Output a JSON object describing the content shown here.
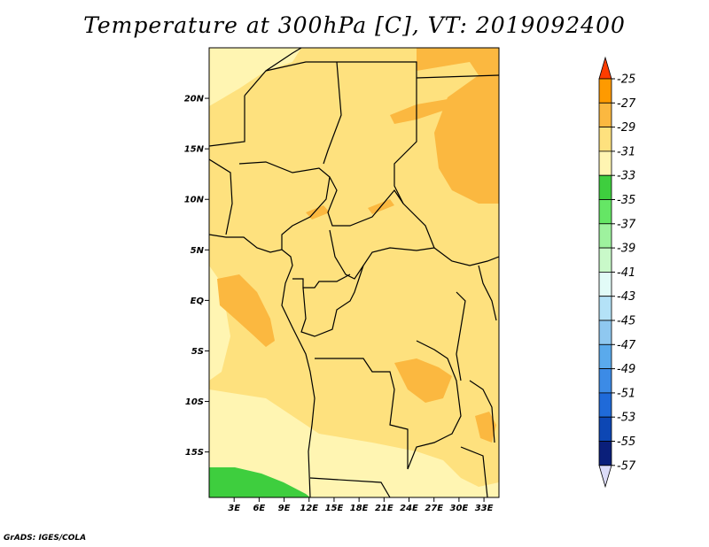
{
  "title": "Temperature at 300hPa [C], VT: 2019092400",
  "footer": "GrADS: IGES/COLA",
  "map": {
    "lon_range": [
      0,
      34.8
    ],
    "lat_range": [
      -19.5,
      25
    ],
    "lon_ticks": [
      {
        "value": 3,
        "label": "3E"
      },
      {
        "value": 6,
        "label": "6E"
      },
      {
        "value": 9,
        "label": "9E"
      },
      {
        "value": 12,
        "label": "12E"
      },
      {
        "value": 15,
        "label": "15E"
      },
      {
        "value": 18,
        "label": "18E"
      },
      {
        "value": 21,
        "label": "21E"
      },
      {
        "value": 24,
        "label": "24E"
      },
      {
        "value": 27,
        "label": "27E"
      },
      {
        "value": 30,
        "label": "30E"
      },
      {
        "value": 33,
        "label": "33E"
      }
    ],
    "lat_ticks": [
      {
        "value": 20,
        "label": "20N"
      },
      {
        "value": 15,
        "label": "15N"
      },
      {
        "value": 10,
        "label": "10N"
      },
      {
        "value": 5,
        "label": "5N"
      },
      {
        "value": 0,
        "label": "EQ"
      },
      {
        "value": -5,
        "label": "5S"
      },
      {
        "value": -10,
        "label": "10S"
      },
      {
        "value": -15,
        "label": "15S"
      }
    ],
    "fill_colors": {
      "t_33_31": "#fee17e",
      "t_31_29": "#fbb840",
      "t_35_33": "#fff5b2",
      "t_37_35": "#3ece3e",
      "border": "#000000"
    }
  },
  "colorbar": {
    "levels": [
      "-25",
      "-27",
      "-29",
      "-31",
      "-33",
      "-35",
      "-37",
      "-39",
      "-41",
      "-43",
      "-45",
      "-47",
      "-49",
      "-51",
      "-53",
      "-55",
      "-57"
    ],
    "colors_top_to_bottom": [
      "#fe6400",
      "#fe9a00",
      "#fbb840",
      "#fee17e",
      "#fff5b2",
      "#3ece3e",
      "#65e665",
      "#9ef29e",
      "#c9f9c9",
      "#e2fbf7",
      "#b4e2f7",
      "#8fc8f0",
      "#5aaaec",
      "#3c8be6",
      "#1f6ad9",
      "#0d47b4",
      "#0a1f7a",
      "#dcdcf8"
    ],
    "top_arrow_color": "#fe3c00",
    "bottom_arrow_color": "#dcdcf8"
  }
}
